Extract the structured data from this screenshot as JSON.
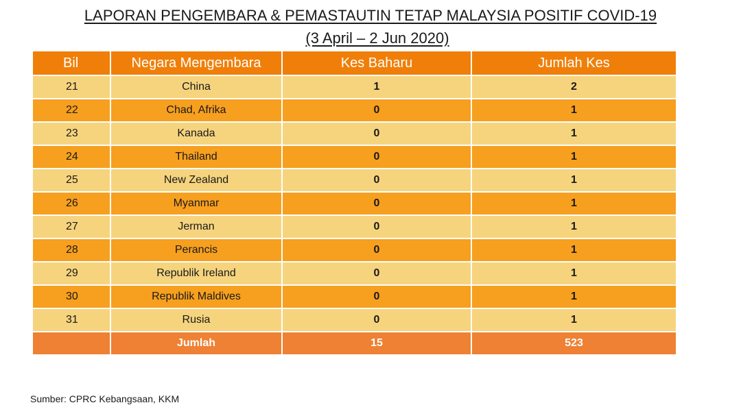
{
  "title": {
    "line1": "LAPORAN PENGEMBARA & PEMASTAUTIN TETAP MALAYSIA POSITIF COVID-19",
    "line2": "(3 April – 2 Jun 2020)"
  },
  "table": {
    "headers": [
      "Bil",
      "Negara Mengembara",
      "Kes Baharu",
      "Jumlah Kes"
    ],
    "rows": [
      [
        "21",
        "China",
        "1",
        "2"
      ],
      [
        "22",
        "Chad, Afrika",
        "0",
        "1"
      ],
      [
        "23",
        "Kanada",
        "0",
        "1"
      ],
      [
        "24",
        "Thailand",
        "0",
        "1"
      ],
      [
        "25",
        "New Zealand",
        "0",
        "1"
      ],
      [
        "26",
        "Myanmar",
        "0",
        "1"
      ],
      [
        "27",
        "Jerman",
        "0",
        "1"
      ],
      [
        "28",
        "Perancis",
        "0",
        "1"
      ],
      [
        "29",
        "Republik Ireland",
        "0",
        "1"
      ],
      [
        "30",
        "Republik Maldives",
        "0",
        "1"
      ],
      [
        "31",
        "Rusia",
        "0",
        "1"
      ]
    ],
    "total": {
      "label": "Jumlah",
      "kes_baharu": "15",
      "jumlah_kes": "523"
    }
  },
  "source": "Sumber: CPRC Kebangsaan, KKM",
  "colors": {
    "header": "#f07f09",
    "row_light": "#f6d47e",
    "row_dark": "#f79f1f",
    "total": "#ee8133"
  }
}
